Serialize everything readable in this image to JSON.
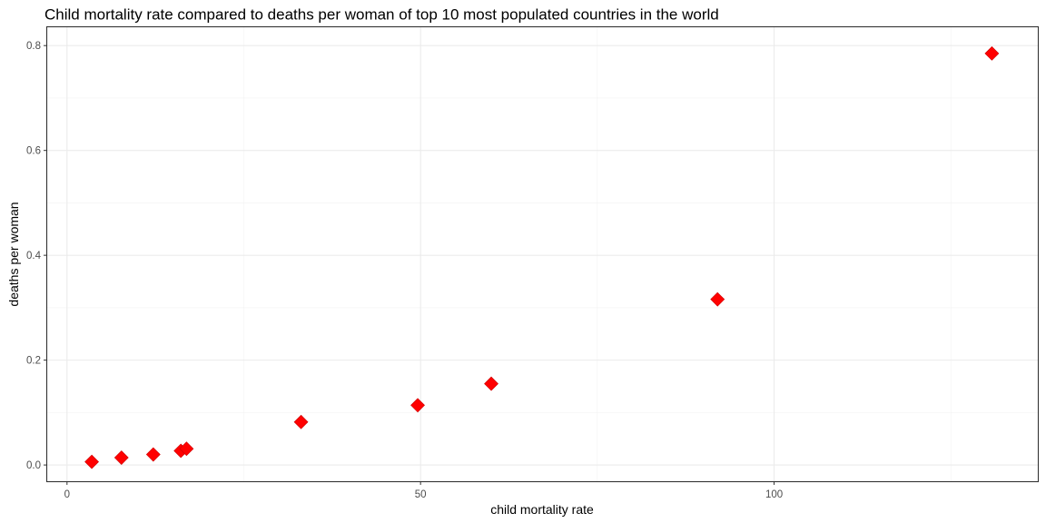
{
  "chart_data": {
    "type": "scatter",
    "title": "Child mortality rate compared to deaths per woman of top 10 most populated countries in the world",
    "xlabel": "child mortality rate",
    "ylabel": "deaths per woman",
    "xlim": [
      -2.8,
      137.3
    ],
    "ylim": [
      -0.031,
      0.835
    ],
    "x_ticks": [
      0,
      50,
      100
    ],
    "y_ticks": [
      0.0,
      0.2,
      0.4,
      0.6,
      0.8
    ],
    "x_tick_labels": [
      "0",
      "50",
      "100"
    ],
    "y_tick_labels": [
      "0.0",
      "0.2",
      "0.4",
      "0.6",
      "0.8"
    ],
    "grid": true,
    "marker": "diamond",
    "marker_color": "#ff0000",
    "points": [
      {
        "x": 3.5,
        "y": 0.006
      },
      {
        "x": 7.7,
        "y": 0.014
      },
      {
        "x": 12.2,
        "y": 0.02
      },
      {
        "x": 16.1,
        "y": 0.027
      },
      {
        "x": 16.9,
        "y": 0.031
      },
      {
        "x": 33.1,
        "y": 0.082
      },
      {
        "x": 49.6,
        "y": 0.114
      },
      {
        "x": 60.0,
        "y": 0.155
      },
      {
        "x": 92.0,
        "y": 0.316
      },
      {
        "x": 130.8,
        "y": 0.785
      }
    ]
  }
}
